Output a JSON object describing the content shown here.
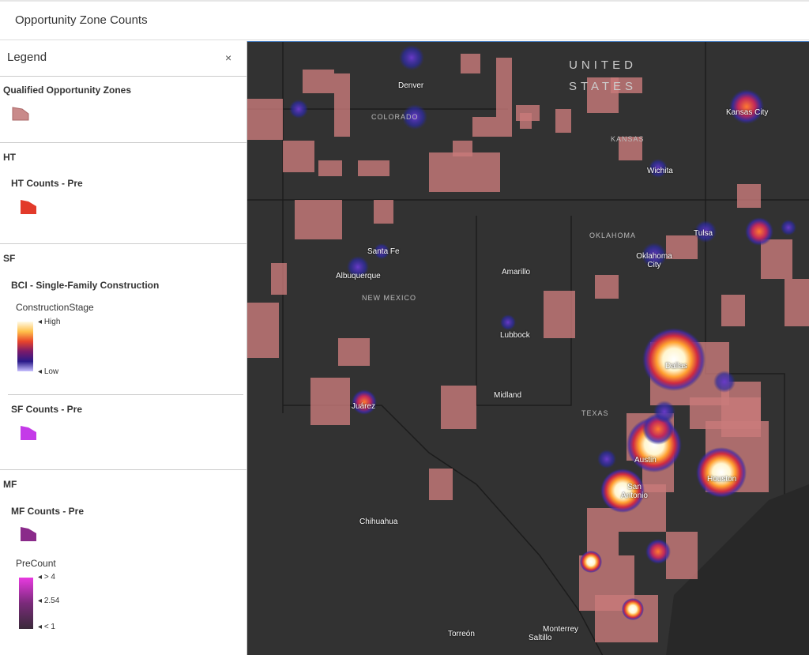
{
  "header": {
    "title": "Opportunity Zone Counts"
  },
  "legend": {
    "title": "Legend",
    "sections": [
      {
        "heading": "Qualified Opportunity Zones"
      },
      {
        "heading": "HT",
        "layers": [
          {
            "name": "HT Counts - Pre"
          }
        ]
      },
      {
        "heading": "SF",
        "layers": [
          {
            "name": "BCI - Single-Family Construction",
            "field": "ConstructionStage",
            "stops": [
              "High",
              "Low"
            ]
          },
          {
            "name": "SF Counts - Pre"
          }
        ]
      },
      {
        "heading": "MF",
        "layers": [
          {
            "name": "MF Counts - Pre",
            "field": "PreCount",
            "stops": [
              "> 4",
              "2.54",
              "< 1"
            ]
          }
        ]
      }
    ]
  },
  "map": {
    "labels": [
      "UNITED STATES",
      "Denver",
      "COLORADO",
      "Kansas City",
      "KANSAS",
      "Wichita",
      "Tulsa",
      "OKLAHOMA",
      "Oklahoma City",
      "Santa Fe",
      "Albuquerque",
      "NEW MEXICO",
      "Amarillo",
      "Lubbock",
      "Dallas",
      "Midland",
      "Juárez",
      "TEXAS",
      "Austin",
      "San Antonio",
      "Houston",
      "Chihuahua",
      "Monterrey",
      "Torreón",
      "Saltillo"
    ]
  }
}
